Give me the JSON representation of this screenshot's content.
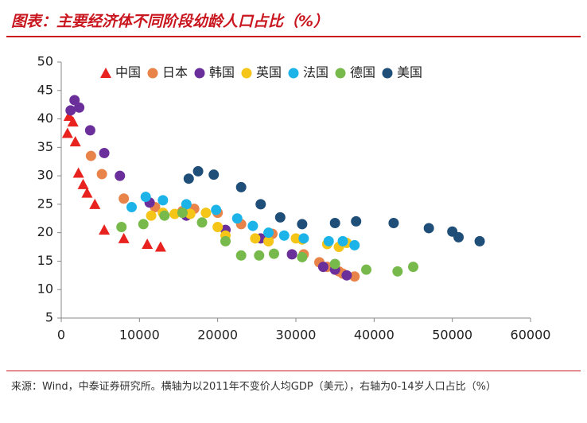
{
  "chart_data": {
    "type": "scatter",
    "title": "图表：主要经济体不同阶段幼龄人口占比（%）",
    "source": "来源：Wind，中泰证券研究所。横轴为以2011年不变价人均GDP（美元），右轴为0-14岁人口占比（%）",
    "xlim": [
      0,
      60000
    ],
    "xticks": [
      0,
      10000,
      20000,
      30000,
      40000,
      50000,
      60000
    ],
    "ylim": [
      5,
      50
    ],
    "yticks": [
      5,
      10,
      15,
      20,
      25,
      30,
      35,
      40,
      45,
      50
    ],
    "series": [
      {
        "name": "中国",
        "color": "#e8231f",
        "marker": "triangle",
        "x": [
          800,
          1000,
          1500,
          1800,
          2200,
          2800,
          3300,
          4300,
          5500,
          8000,
          11000,
          12700
        ],
        "values": [
          37.5,
          40.5,
          39.5,
          36,
          30.5,
          28.5,
          27,
          25,
          20.5,
          19,
          18,
          17.5
        ]
      },
      {
        "name": "日本",
        "color": "#e8844a",
        "marker": "circle",
        "x": [
          3800,
          5200,
          8000,
          12000,
          15500,
          17000,
          20000,
          23000,
          27000,
          26500,
          31000,
          33000,
          34000,
          35500,
          36000,
          37500
        ],
        "values": [
          33.5,
          30.3,
          26,
          24.5,
          23.8,
          24.2,
          23.5,
          21.5,
          19.8,
          18.5,
          16.2,
          14.8,
          14,
          13.2,
          12.8,
          12.3
        ]
      },
      {
        "name": "韩国",
        "color": "#6a2f9a",
        "marker": "circle",
        "x": [
          1200,
          1700,
          2300,
          3700,
          5500,
          7500,
          11300,
          16000,
          21000,
          25500,
          29500,
          33500,
          35000,
          36500
        ],
        "values": [
          41.5,
          43.3,
          42,
          38,
          34,
          30,
          25.3,
          23,
          20.5,
          19,
          16.2,
          14,
          13.5,
          12.5
        ]
      },
      {
        "name": "英国",
        "color": "#f5c518",
        "marker": "circle",
        "x": [
          11500,
          13000,
          14500,
          16500,
          18500,
          20000,
          21000,
          24800,
          26500,
          30000,
          30800,
          34000,
          35500,
          36500
        ],
        "values": [
          23,
          23.5,
          23.3,
          23.3,
          23.5,
          21,
          19.5,
          19,
          18.5,
          19,
          18.8,
          18,
          17.5,
          18.2
        ]
      },
      {
        "name": "法国",
        "color": "#1cb4e8",
        "marker": "circle",
        "x": [
          9000,
          10800,
          13000,
          16000,
          19800,
          22500,
          24500,
          26500,
          28500,
          31000,
          34200,
          36000,
          37500
        ],
        "values": [
          24.5,
          26.3,
          25.7,
          25,
          24,
          22.5,
          21.2,
          20,
          19.5,
          19,
          18.5,
          18.5,
          17.8
        ]
      },
      {
        "name": "德国",
        "color": "#77b94a",
        "marker": "circle",
        "x": [
          7700,
          10500,
          13200,
          15500,
          18000,
          21000,
          23000,
          25300,
          27200,
          30800,
          35000,
          39000,
          43000,
          45000
        ],
        "values": [
          21,
          21.5,
          23,
          23.5,
          21.8,
          18.5,
          16,
          16,
          16.3,
          15.7,
          14.5,
          13.5,
          13.2,
          14
        ]
      },
      {
        "name": "美国",
        "color": "#1f4e79",
        "marker": "circle",
        "x": [
          16300,
          17500,
          19500,
          23000,
          25500,
          28000,
          30800,
          35000,
          37700,
          42500,
          47000,
          50000,
          50800,
          53500
        ],
        "values": [
          29.5,
          30.8,
          30.2,
          28,
          25,
          22.7,
          21.5,
          21.7,
          22,
          21.7,
          20.8,
          20.2,
          19.2,
          18.5
        ]
      }
    ]
  }
}
